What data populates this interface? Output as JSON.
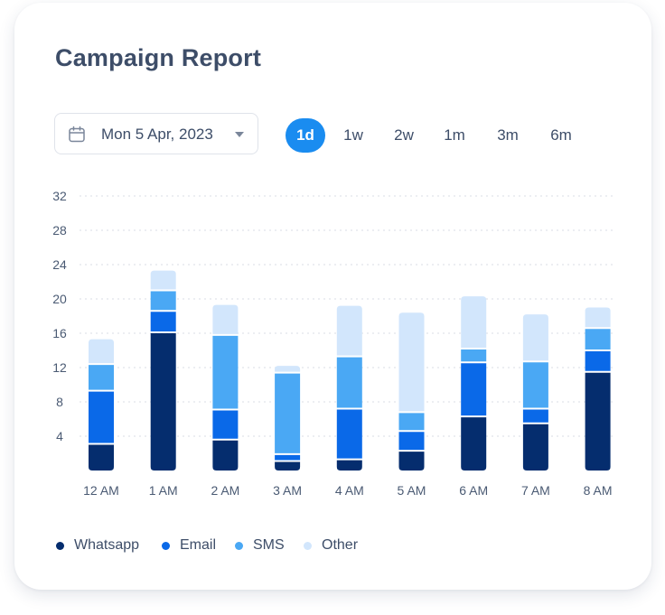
{
  "header": {
    "title": "Campaign Report"
  },
  "date_picker": {
    "value": "Mon 5 Apr, 2023",
    "icon": "calendar-icon"
  },
  "range_tabs": [
    {
      "label": "1d",
      "active": true
    },
    {
      "label": "1w",
      "active": false
    },
    {
      "label": "2w",
      "active": false
    },
    {
      "label": "1m",
      "active": false
    },
    {
      "label": "3m",
      "active": false
    },
    {
      "label": "6m",
      "active": false
    }
  ],
  "colors": {
    "accent": "#1a8cf0",
    "Whatsapp": "#052d6e",
    "Email": "#0a69e8",
    "SMS": "#4aa8f4",
    "Other": "#d2e6fc",
    "grid": "#d8dde5"
  },
  "chart_data": {
    "type": "bar",
    "stacked": true,
    "title": "",
    "xlabel": "",
    "ylabel": "",
    "ylim": [
      0,
      32
    ],
    "yticks": [
      4,
      8,
      12,
      16,
      20,
      24,
      28,
      32
    ],
    "grid": true,
    "legend_position": "bottom-left",
    "categories": [
      "12 AM",
      "1 AM",
      "2 AM",
      "3 AM",
      "4 AM",
      "5 AM",
      "6 AM",
      "7 AM",
      "8 AM"
    ],
    "series": [
      {
        "name": "Whatsapp",
        "values": [
          3,
          16,
          3.5,
          1,
          1.2,
          2.2,
          6.2,
          5.4,
          11.4
        ]
      },
      {
        "name": "Email",
        "values": [
          6.2,
          2.5,
          3.5,
          0.8,
          5.9,
          2.3,
          6.3,
          1.7,
          2.5
        ]
      },
      {
        "name": "SMS",
        "values": [
          3.1,
          2.4,
          8.7,
          9.5,
          6.1,
          2.2,
          1.6,
          5.5,
          2.6
        ]
      },
      {
        "name": "Other",
        "values": [
          3,
          2.4,
          3.6,
          0.9,
          6,
          11.7,
          6.2,
          5.6,
          2.5
        ]
      }
    ]
  }
}
